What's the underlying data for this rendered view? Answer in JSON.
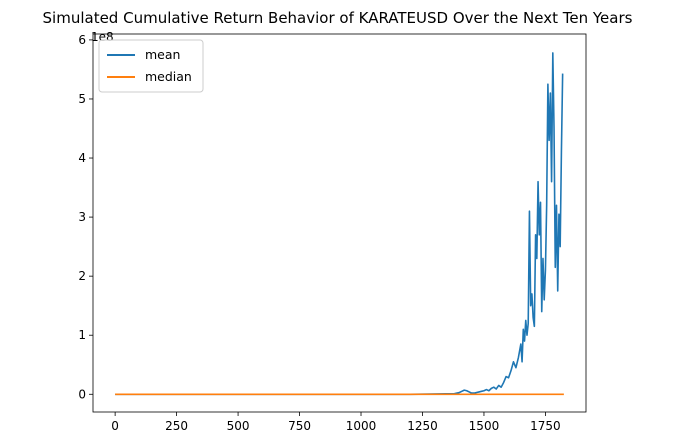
{
  "chart_data": {
    "type": "line",
    "title": "Simulated Cumulative Return Behavior of KARATEUSD Over the Next Ten Years",
    "xlabel": "",
    "ylabel": "",
    "xlim": [
      -90,
      1915
    ],
    "ylim": [
      -0.3,
      6.1
    ],
    "x_ticks": [
      0,
      250,
      500,
      750,
      1000,
      1250,
      1500,
      1750
    ],
    "x_tick_labels": [
      "0",
      "250",
      "500",
      "750",
      "1000",
      "1250",
      "1500",
      "1750"
    ],
    "y_ticks": [
      0,
      1,
      2,
      3,
      4,
      5,
      6
    ],
    "y_tick_labels": [
      "0",
      "1",
      "2",
      "3",
      "4",
      "5",
      "6"
    ],
    "y_offset_label": "1e8",
    "grid": false,
    "legend_position": "top-left",
    "series": [
      {
        "name": "mean",
        "color": "#1f77b4",
        "points": [
          [
            0,
            0.0
          ],
          [
            200,
            0.0
          ],
          [
            400,
            0.0
          ],
          [
            600,
            0.0
          ],
          [
            800,
            0.0
          ],
          [
            1000,
            0.0
          ],
          [
            1200,
            0.0
          ],
          [
            1380,
            0.01
          ],
          [
            1400,
            0.03
          ],
          [
            1410,
            0.05
          ],
          [
            1420,
            0.07
          ],
          [
            1430,
            0.06
          ],
          [
            1440,
            0.04
          ],
          [
            1450,
            0.02
          ],
          [
            1460,
            0.02
          ],
          [
            1470,
            0.03
          ],
          [
            1480,
            0.04
          ],
          [
            1490,
            0.05
          ],
          [
            1500,
            0.06
          ],
          [
            1510,
            0.08
          ],
          [
            1520,
            0.06
          ],
          [
            1530,
            0.1
          ],
          [
            1540,
            0.12
          ],
          [
            1550,
            0.09
          ],
          [
            1560,
            0.15
          ],
          [
            1570,
            0.12
          ],
          [
            1580,
            0.2
          ],
          [
            1590,
            0.3
          ],
          [
            1600,
            0.28
          ],
          [
            1610,
            0.4
          ],
          [
            1620,
            0.55
          ],
          [
            1630,
            0.45
          ],
          [
            1640,
            0.62
          ],
          [
            1650,
            0.85
          ],
          [
            1655,
            0.55
          ],
          [
            1660,
            1.1
          ],
          [
            1665,
            0.9
          ],
          [
            1670,
            1.25
          ],
          [
            1675,
            1.0
          ],
          [
            1680,
            1.2
          ],
          [
            1685,
            3.1
          ],
          [
            1690,
            1.5
          ],
          [
            1695,
            1.7
          ],
          [
            1700,
            1.3
          ],
          [
            1705,
            1.15
          ],
          [
            1710,
            2.7
          ],
          [
            1715,
            2.3
          ],
          [
            1720,
            3.6
          ],
          [
            1725,
            2.7
          ],
          [
            1730,
            3.25
          ],
          [
            1735,
            1.4
          ],
          [
            1740,
            2.3
          ],
          [
            1745,
            1.6
          ],
          [
            1750,
            2.1
          ],
          [
            1755,
            3.2
          ],
          [
            1760,
            5.25
          ],
          [
            1765,
            4.3
          ],
          [
            1770,
            5.1
          ],
          [
            1775,
            3.6
          ],
          [
            1780,
            5.78
          ],
          [
            1785,
            4.5
          ],
          [
            1790,
            2.15
          ],
          [
            1795,
            3.2
          ],
          [
            1800,
            1.75
          ],
          [
            1805,
            3.05
          ],
          [
            1810,
            2.5
          ],
          [
            1815,
            4.1
          ],
          [
            1820,
            5.43
          ]
        ]
      },
      {
        "name": "median",
        "color": "#ff7f0e",
        "points": [
          [
            0,
            0.0
          ],
          [
            1825,
            0.0
          ]
        ]
      }
    ]
  }
}
